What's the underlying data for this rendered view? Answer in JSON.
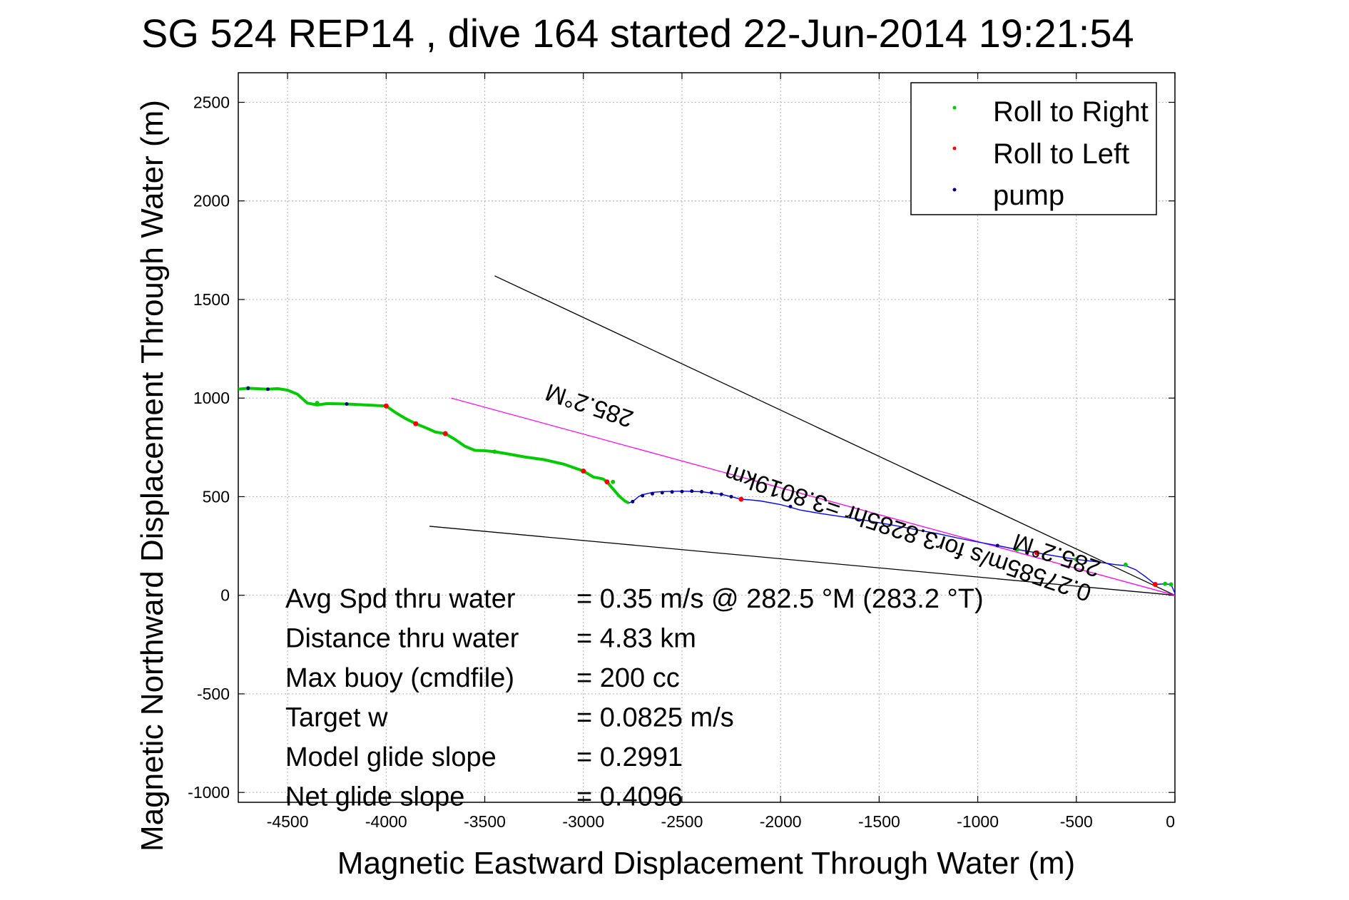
{
  "chart_data": {
    "type": "scatter",
    "title": "SG 524   REP14  , dive 164 started 22-Jun-2014 19:21:54",
    "xlabel": "Magnetic Eastward Displacement Through Water (m)",
    "ylabel": "Magnetic Northward Displacement Through Water (m)",
    "xlim": [
      -4750,
      0
    ],
    "ylim": [
      -1050,
      2650
    ],
    "xticks": [
      -4500,
      -4000,
      -3500,
      -3000,
      -2500,
      -2000,
      -1500,
      -1000,
      -500,
      0
    ],
    "yticks": [
      -1000,
      -500,
      0,
      500,
      1000,
      1500,
      2000,
      2500
    ],
    "grid": true,
    "legend_position": "top-right",
    "legend": [
      {
        "name": "Roll to Right",
        "color": "#00cc00"
      },
      {
        "name": "Roll to Left",
        "color": "#ff0000"
      },
      {
        "name": "pump",
        "color": "#000080"
      }
    ],
    "track_color": "#0000ff",
    "track": {
      "x": [
        -4750,
        -4700,
        -4600,
        -4550,
        -4500,
        -4450,
        -4400,
        -4350,
        -4300,
        -4200,
        -4100,
        -4000,
        -3950,
        -3900,
        -3850,
        -3800,
        -3750,
        -3700,
        -3650,
        -3600,
        -3550,
        -3500,
        -3450,
        -3400,
        -3300,
        -3200,
        -3100,
        -3000,
        -2950,
        -2900,
        -2880,
        -2850,
        -2820,
        -2790,
        -2770,
        -2750,
        -2720,
        -2700,
        -2650,
        -2600,
        -2500,
        -2400,
        -2300,
        -2250,
        -2200,
        -2150,
        -2100,
        -2000,
        -1900,
        -1800,
        -1700,
        -1600,
        -1500,
        -1400,
        -1300,
        -1200,
        -1100,
        -1000,
        -900,
        -800,
        -700,
        -600,
        -500,
        -400,
        -300,
        -250,
        -200,
        -150,
        -100,
        -50,
        -20,
        0
      ],
      "y": [
        1045,
        1050,
        1045,
        1048,
        1040,
        1020,
        975,
        965,
        972,
        970,
        965,
        960,
        925,
        895,
        870,
        850,
        828,
        820,
        790,
        755,
        735,
        733,
        728,
        720,
        702,
        688,
        665,
        630,
        600,
        590,
        575,
        540,
        505,
        478,
        468,
        475,
        500,
        510,
        522,
        526,
        528,
        525,
        512,
        500,
        487,
        483,
        478,
        460,
        432,
        415,
        400,
        385,
        368,
        350,
        330,
        312,
        290,
        270,
        252,
        232,
        215,
        198,
        182,
        170,
        155,
        150,
        130,
        95,
        55,
        58,
        55,
        10
      ]
    },
    "green_x": [
      -4700,
      -4350,
      -3450,
      -2850,
      -800,
      -500,
      -250,
      -50,
      -20
    ],
    "green_y": [
      1050,
      975,
      728,
      575,
      232,
      182,
      155,
      58,
      55
    ],
    "red_x": [
      -4000,
      -3850,
      -3700,
      -3000,
      -2880,
      -2200,
      -700,
      -100
    ],
    "red_y": [
      960,
      870,
      820,
      630,
      575,
      487,
      215,
      55
    ],
    "pump_x": [
      -4700,
      -4600,
      -4200,
      -2750,
      -2700,
      -2650,
      -2600,
      -2550,
      -2500,
      -2450,
      -2400,
      -2350,
      -2300,
      -2250,
      -1950,
      -900
    ],
    "pump_y": [
      1050,
      1045,
      970,
      475,
      505,
      515,
      520,
      524,
      526,
      528,
      525,
      520,
      512,
      500,
      450,
      252
    ],
    "guide_lines": [
      {
        "color": "#000000",
        "x": [
          -3450,
          0
        ],
        "y": [
          1620,
          0
        ]
      },
      {
        "color": "#000000",
        "x": [
          -3780,
          0
        ],
        "y": [
          350,
          0
        ]
      },
      {
        "color": "#ff00ff",
        "x": [
          -3670,
          0
        ],
        "y": [
          1000,
          0
        ]
      }
    ],
    "annotations": [
      {
        "text": "285.2°M"
      },
      {
        "text": "0.27585m/s for3.8285hr =3.8019km"
      },
      {
        "text": "285.2°M"
      }
    ],
    "info_lines": [
      {
        "label": "Avg Spd thru water",
        "value": "=  0.35 m/s @ 282.5 °M (283.2 °T)"
      },
      {
        "label": "Distance thru water",
        "value": "=  4.83 km"
      },
      {
        "label": "Max buoy (cmdfile)",
        "value": "= 200 cc"
      },
      {
        "label": "Target w",
        "value": "= 0.0825 m/s"
      },
      {
        "label": "Model glide slope",
        "value": "= 0.2991"
      },
      {
        "label": "Net glide slope",
        "value": "= 0.4096"
      }
    ]
  }
}
